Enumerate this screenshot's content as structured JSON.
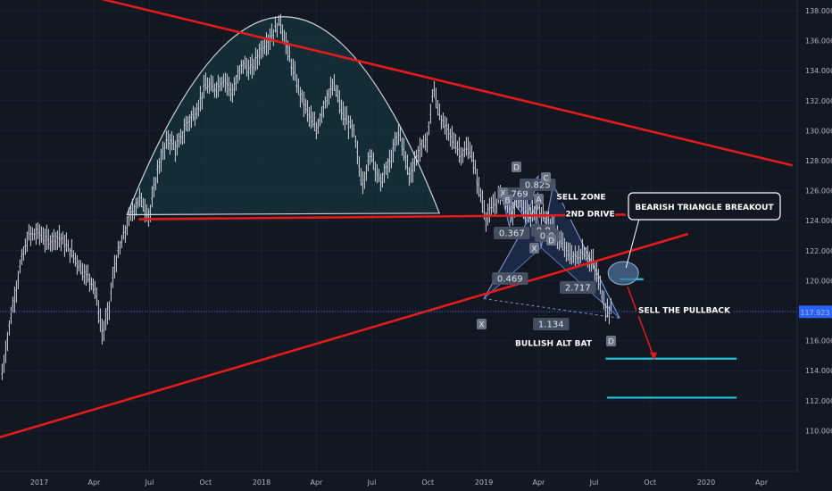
{
  "chart_data": {
    "type": "candlestick",
    "title": "",
    "price_axis": {
      "ticks": [
        "138.000",
        "136.000",
        "134.000",
        "132.000",
        "130.000",
        "128.000",
        "126.000",
        "124.000",
        "122.000",
        "120.000",
        "118.000",
        "116.000",
        "114.000",
        "112.000",
        "110.000"
      ],
      "ylim": [
        108.8,
        138.6
      ],
      "current_price": "117.923"
    },
    "time_axis": {
      "ticks": [
        "2017",
        "Apr",
        "Jul",
        "Oct",
        "2018",
        "Apr",
        "Jul",
        "Oct",
        "2019",
        "Apr",
        "Jul",
        "Oct",
        "2020",
        "Apr"
      ]
    },
    "price_path": [
      {
        "date": "2016-11-01",
        "value": 113.8
      },
      {
        "date": "2016-11-15",
        "value": 117.5
      },
      {
        "date": "2016-12-01",
        "value": 121.0
      },
      {
        "date": "2016-12-15",
        "value": 123.0
      },
      {
        "date": "2017-01-01",
        "value": 123.2
      },
      {
        "date": "2017-01-15",
        "value": 122.6
      },
      {
        "date": "2017-02-01",
        "value": 123.0
      },
      {
        "date": "2017-02-15",
        "value": 122.3
      },
      {
        "date": "2017-03-01",
        "value": 121.5
      },
      {
        "date": "2017-03-15",
        "value": 120.6
      },
      {
        "date": "2017-04-01",
        "value": 119.8
      },
      {
        "date": "2017-04-15",
        "value": 116.4
      },
      {
        "date": "2017-04-25",
        "value": 118.0
      },
      {
        "date": "2017-05-05",
        "value": 121.0
      },
      {
        "date": "2017-05-20",
        "value": 123.0
      },
      {
        "date": "2017-06-01",
        "value": 124.5
      },
      {
        "date": "2017-06-15",
        "value": 125.5
      },
      {
        "date": "2017-07-01",
        "value": 124.3
      },
      {
        "date": "2017-07-15",
        "value": 127.5
      },
      {
        "date": "2017-08-01",
        "value": 129.5
      },
      {
        "date": "2017-08-15",
        "value": 128.8
      },
      {
        "date": "2017-09-01",
        "value": 130.5
      },
      {
        "date": "2017-09-15",
        "value": 131.2
      },
      {
        "date": "2017-10-01",
        "value": 133.0
      },
      {
        "date": "2017-10-15",
        "value": 132.8
      },
      {
        "date": "2017-11-01",
        "value": 133.5
      },
      {
        "date": "2017-11-15",
        "value": 132.5
      },
      {
        "date": "2017-12-01",
        "value": 134.5
      },
      {
        "date": "2017-12-15",
        "value": 134.0
      },
      {
        "date": "2018-01-01",
        "value": 135.5
      },
      {
        "date": "2018-01-15",
        "value": 136.2
      },
      {
        "date": "2018-02-01",
        "value": 137.3
      },
      {
        "date": "2018-02-15",
        "value": 135.0
      },
      {
        "date": "2018-03-01",
        "value": 133.0
      },
      {
        "date": "2018-03-15",
        "value": 131.5
      },
      {
        "date": "2018-04-01",
        "value": 130.0
      },
      {
        "date": "2018-04-15",
        "value": 132.0
      },
      {
        "date": "2018-05-01",
        "value": 133.0
      },
      {
        "date": "2018-05-15",
        "value": 131.0
      },
      {
        "date": "2018-06-01",
        "value": 130.0
      },
      {
        "date": "2018-06-15",
        "value": 126.5
      },
      {
        "date": "2018-07-01",
        "value": 128.5
      },
      {
        "date": "2018-07-15",
        "value": 126.5
      },
      {
        "date": "2018-08-01",
        "value": 128.0
      },
      {
        "date": "2018-08-15",
        "value": 130.0
      },
      {
        "date": "2018-09-01",
        "value": 127.0
      },
      {
        "date": "2018-09-15",
        "value": 128.5
      },
      {
        "date": "2018-10-01",
        "value": 129.5
      },
      {
        "date": "2018-10-10",
        "value": 132.8
      },
      {
        "date": "2018-10-25",
        "value": 130.5
      },
      {
        "date": "2018-11-10",
        "value": 129.5
      },
      {
        "date": "2018-11-25",
        "value": 128.5
      },
      {
        "date": "2018-12-10",
        "value": 128.8
      },
      {
        "date": "2018-12-25",
        "value": 126.0
      },
      {
        "date": "2019-01-05",
        "value": 124.2
      },
      {
        "date": "2019-01-15",
        "value": 124.8
      },
      {
        "date": "2019-02-01",
        "value": 126.0
      },
      {
        "date": "2019-02-15",
        "value": 124.5
      },
      {
        "date": "2019-03-01",
        "value": 125.5
      },
      {
        "date": "2019-03-15",
        "value": 124.2
      },
      {
        "date": "2019-04-01",
        "value": 125.0
      },
      {
        "date": "2019-04-15",
        "value": 124.0
      },
      {
        "date": "2019-05-01",
        "value": 123.0
      },
      {
        "date": "2019-05-15",
        "value": 122.0
      },
      {
        "date": "2019-06-01",
        "value": 121.5
      },
      {
        "date": "2019-06-15",
        "value": 122.0
      },
      {
        "date": "2019-07-01",
        "value": 121.0
      },
      {
        "date": "2019-07-10",
        "value": 119.8
      },
      {
        "date": "2019-07-20",
        "value": 118.2
      },
      {
        "date": "2019-07-30",
        "value": 117.9
      }
    ],
    "patterns": {
      "bullish_alt_bat": {
        "points": [
          {
            "label": "X",
            "date": "2019-01-01",
            "value": 118.8
          },
          {
            "label": "A",
            "date": "2019-03-28",
            "value": 125.0
          },
          {
            "label": "B",
            "date": "2019-04-05",
            "value": 122.2
          },
          {
            "label": "C",
            "date": "2019-04-25",
            "value": 126.4
          },
          {
            "label": "D",
            "date": "2019-08-12",
            "value": 117.5
          }
        ],
        "ratios": [
          "0.469",
          "2.717",
          "1.134"
        ]
      },
      "sell_zone_drive": {
        "points": [
          {
            "label": "X",
            "date": "2019-02-01",
            "value": 125.4
          },
          {
            "label": "A",
            "date": "2019-02-12",
            "value": 123.6
          },
          {
            "label": "B",
            "date": "2019-02-20",
            "value": 125.2
          },
          {
            "label": "C",
            "date": "2019-03-12",
            "value": 124.0
          },
          {
            "label": "D",
            "date": "2019-04-01",
            "value": 127.0
          }
        ],
        "ratios": [
          "0.769",
          "0.825",
          "0.367"
        ]
      },
      "drive_points": [
        {
          "label": "A",
          "date": "2019-03-01",
          "value": 125.6
        },
        {
          "label": "B",
          "date": "2019-03-10",
          "value": 124.8
        },
        {
          "label": "C",
          "date": "2019-04-22",
          "value": 126.5
        },
        {
          "label": "D",
          "date": "2019-05-15",
          "value": 123.5
        },
        {
          "label": "X",
          "date": "2019-04-02",
          "value": 123.0
        }
      ],
      "drive_ratios": [
        "0.8",
        "0.8"
      ]
    },
    "annotations": {
      "sell_zone": "SELL ZONE",
      "second_drive": "2ND DRIVE",
      "bearish_breakout": "BEARISH TRIANGLE BREAKOUT",
      "sell_pullback": "SELL THE PULLBACK",
      "bullish_alt_bat": "BULLISH ALT BAT"
    },
    "trendlines": [
      {
        "name": "upper-resistance",
        "from": {
          "date": "2017-04-01",
          "value": 138.9
        },
        "to": {
          "date": "2020-05-20",
          "value": 127.7
        }
      },
      {
        "name": "lower-support",
        "from": {
          "date": "2016-10-15",
          "value": 109.4
        },
        "to": {
          "date": "2019-12-01",
          "value": 123.1
        }
      },
      {
        "name": "horizontal-neckline",
        "from": {
          "date": "2017-06-15",
          "value": 124.1
        },
        "to": {
          "date": "2019-08-20",
          "value": 124.4
        }
      }
    ],
    "target_levels": [
      {
        "from": "2019-08-12",
        "to": "2019-09-20",
        "value": 120.1
      },
      {
        "from": "2019-07-20",
        "to": "2020-02-20",
        "value": 114.8
      },
      {
        "from": "2019-07-22",
        "to": "2020-02-20",
        "value": 112.2
      }
    ],
    "rounding_top": {
      "start": {
        "date": "2017-05-25",
        "value": 124.4
      },
      "peak": {
        "date": "2018-02-07",
        "value": 137.6
      },
      "end": {
        "date": "2018-10-20",
        "value": 124.5
      }
    },
    "breakout_circle": {
      "date": "2019-08-18",
      "value": 120.5
    },
    "arrow": {
      "from": {
        "date": "2019-08-25",
        "value": 119.6
      },
      "to": {
        "date": "2019-10-08",
        "value": 114.8
      }
    },
    "colors": {
      "background": "#131722",
      "trend": "#e21b1b",
      "target": "#22c4de",
      "pattern_fill": "#1f2d4a",
      "dome_fill": "#15303a",
      "circle": "#4c6f96",
      "price_line": "#2a62ff"
    }
  }
}
